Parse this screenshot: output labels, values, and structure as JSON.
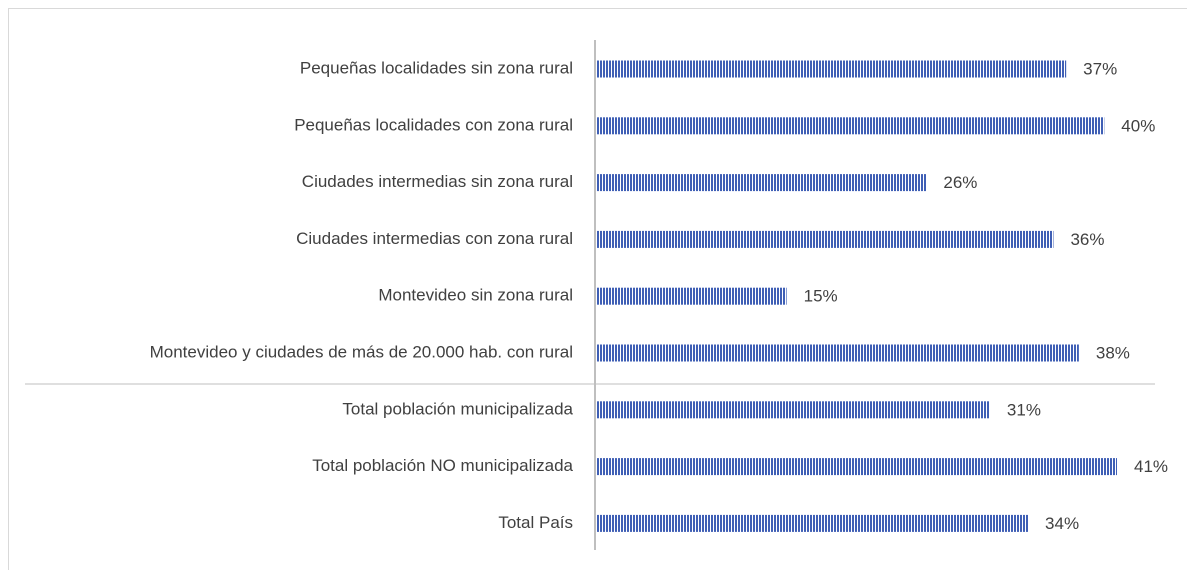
{
  "chart_data": {
    "type": "bar",
    "orientation": "horizontal",
    "categories": [
      "Pequeñas localidades sin zona rural",
      "Pequeñas localidades con zona rural",
      "Ciudades intermedias sin zona rural",
      "Ciudades intermedias con zona rural",
      "Montevideo sin zona rural",
      "Montevideo y ciudades de más de 20.000 hab. con rural",
      "Total población municipalizada",
      "Total población NO municipalizada",
      "Total País"
    ],
    "values": [
      37,
      40,
      26,
      36,
      15,
      38,
      31,
      41,
      34
    ],
    "value_labels": [
      "37%",
      "40%",
      "26%",
      "36%",
      "15%",
      "38%",
      "31%",
      "41%",
      "34%"
    ],
    "color": "#3f5fb5"
  }
}
